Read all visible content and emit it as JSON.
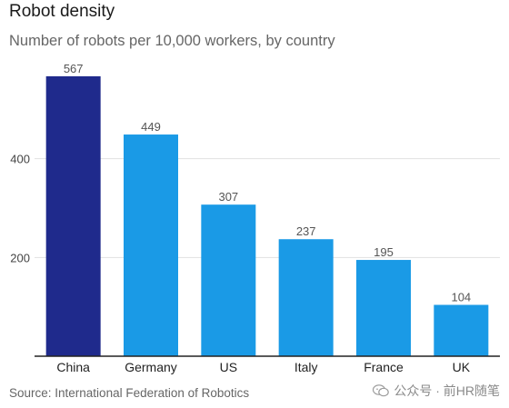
{
  "chart_data": {
    "type": "bar",
    "title": "Robot density",
    "subtitle": "Number of robots per 10,000 workers, by country",
    "xlabel": "",
    "ylabel": "",
    "categories": [
      "China",
      "Germany",
      "US",
      "Italy",
      "France",
      "UK"
    ],
    "values": [
      567,
      449,
      307,
      237,
      195,
      104
    ],
    "yticks": [
      200,
      400
    ],
    "ylim": [
      0,
      600
    ],
    "grid": true,
    "legend": "none",
    "colors": {
      "highlight": "#1f2a8c",
      "bar": "#1a9ae6",
      "grid": "#e1e1e1",
      "axis": "#222222",
      "tick_text": "#444444",
      "value_text": "#555555"
    }
  },
  "footer": {
    "source": "Source: International Federation of Robotics",
    "watermark_text": "公众号 · 前HR随笔",
    "watermark_icon": "wechat-icon"
  }
}
